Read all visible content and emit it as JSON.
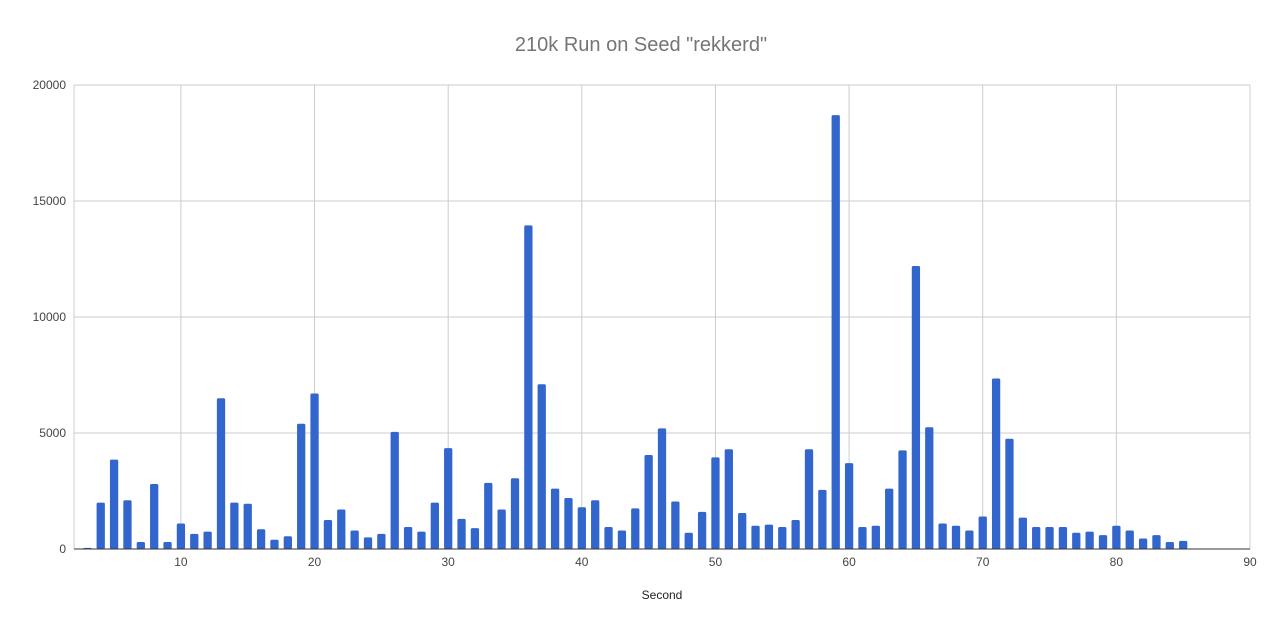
{
  "chart_data": {
    "type": "bar",
    "title": "210k Run on Seed \"rekkerd\"",
    "xlabel": "Second",
    "ylabel": "",
    "xlim": [
      2,
      90
    ],
    "ylim": [
      0,
      20000
    ],
    "x_ticks": [
      10,
      20,
      30,
      40,
      50,
      60,
      70,
      80,
      90
    ],
    "y_ticks": [
      0,
      5000,
      10000,
      15000,
      20000
    ],
    "grid": true,
    "bar_color": "#3366cc",
    "x": [
      3,
      4,
      5,
      6,
      7,
      8,
      9,
      10,
      11,
      12,
      13,
      14,
      15,
      16,
      17,
      18,
      19,
      20,
      21,
      22,
      23,
      24,
      25,
      26,
      27,
      28,
      29,
      30,
      31,
      32,
      33,
      34,
      35,
      36,
      37,
      38,
      39,
      40,
      41,
      42,
      43,
      44,
      45,
      46,
      47,
      48,
      49,
      50,
      51,
      52,
      53,
      54,
      55,
      56,
      57,
      58,
      59,
      60,
      61,
      62,
      63,
      64,
      65,
      66,
      67,
      68,
      69,
      70,
      71,
      72,
      73,
      74,
      75,
      76,
      77,
      78,
      79,
      80,
      81,
      82,
      83,
      84,
      85
    ],
    "values": [
      50,
      2000,
      3850,
      2100,
      300,
      2800,
      300,
      1100,
      650,
      750,
      6500,
      2000,
      1950,
      850,
      400,
      550,
      5400,
      6700,
      1250,
      1700,
      800,
      500,
      650,
      5050,
      950,
      750,
      2000,
      4350,
      1300,
      900,
      2850,
      1700,
      3050,
      13950,
      7100,
      2600,
      2200,
      1800,
      2100,
      950,
      800,
      1750,
      4050,
      5200,
      2050,
      700,
      1600,
      3950,
      4300,
      1550,
      1000,
      1050,
      950,
      1250,
      4300,
      2550,
      18700,
      3700,
      950,
      1000,
      2600,
      4250,
      12200,
      5250,
      1100,
      1000,
      800,
      1400,
      7350,
      4750,
      1350,
      950,
      950,
      950,
      700,
      750,
      600,
      1000,
      800,
      450,
      600,
      300,
      350
    ]
  }
}
